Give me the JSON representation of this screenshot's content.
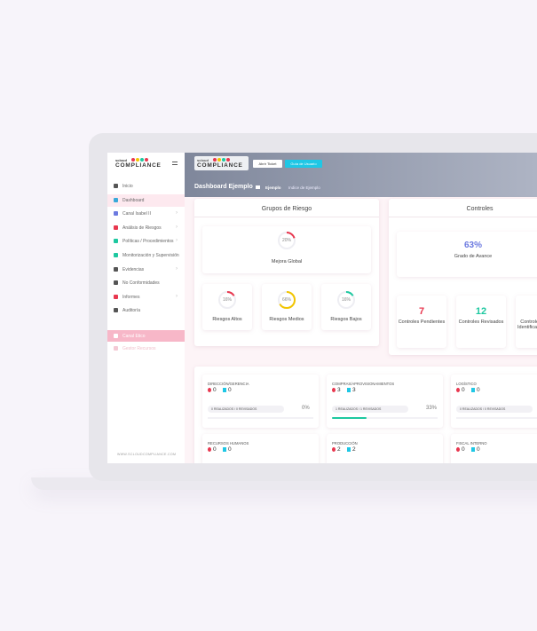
{
  "sidebar": {
    "brand_top": "scloud",
    "brand": "COMPLIANCE",
    "menu": [
      "Inicio",
      "Dashboard",
      "Canal Isabel II",
      "Análisis de Riesgos",
      "Políticas / Procedimientos",
      "Monitorización y Supervisión",
      "Evidencias",
      "No Conformidades",
      "Informes",
      "Auditoría"
    ],
    "extra": [
      "Canal Etico",
      "Gestor Recursos"
    ],
    "footer": "WWW.SCLOUDCOMPLIANCE.COM"
  },
  "header": {
    "brand_top": "scloud",
    "brand": "COMPLIANCE",
    "buttons": [
      "Abrir Ticket",
      "Guía de Usuario"
    ],
    "title": "Dashboard Ejemplo",
    "breadcrumb": [
      "Ejemplo",
      "Indice de Ejemplo"
    ]
  },
  "risk": {
    "title": "Grupos de Riesgo",
    "global": {
      "value": 20,
      "label": "20%",
      "name": "Mejora Global",
      "color": "#e8374f"
    },
    "groups": [
      {
        "value": 16,
        "label": "16%",
        "name": "Riesgos Altos",
        "color": "#e8374f"
      },
      {
        "value": 66,
        "label": "66%",
        "name": "Riesgos Medios",
        "color": "#f2c500"
      },
      {
        "value": 16,
        "label": "16%",
        "name": "Riesgos Bajos",
        "color": "#1ec8a0"
      }
    ]
  },
  "controls": {
    "title": "Controles",
    "progress": {
      "value": 63,
      "label": "63%",
      "name": "Grado de Avance"
    },
    "stats": [
      {
        "value": "7",
        "name": "Controles Pendientes",
        "color": "#e8374f"
      },
      {
        "value": "12",
        "name": "Controles Revisados",
        "color": "#1ec8a0"
      },
      {
        "value": "",
        "name": "Controles Identificados",
        "color": "#6c7ae0"
      }
    ]
  },
  "areas": [
    {
      "name": "DIRECCIÓN/GERENCIA",
      "a": "0",
      "b": "0",
      "status": "0 REALIZADOS / 0 REVISADOS",
      "value": 0,
      "label": "0%"
    },
    {
      "name": "COMPRAS/APROVISIONAMIENTOS",
      "a": "3",
      "b": "3",
      "status": "1 REALIZADOS / 1 REVISADOS",
      "value": 33,
      "label": "33%"
    },
    {
      "name": "LOGÍSTICO",
      "a": "0",
      "b": "0",
      "status": "0 REALIZADOS / 0 REVISADOS",
      "value": 0,
      "label": "0%"
    },
    {
      "name": "RECURSOS HUMANOS",
      "a": "0",
      "b": "0"
    },
    {
      "name": "PRODUCCIÓN",
      "a": "2",
      "b": "2"
    },
    {
      "name": "FISCAL INTERNO",
      "a": "0",
      "b": "0"
    }
  ]
}
